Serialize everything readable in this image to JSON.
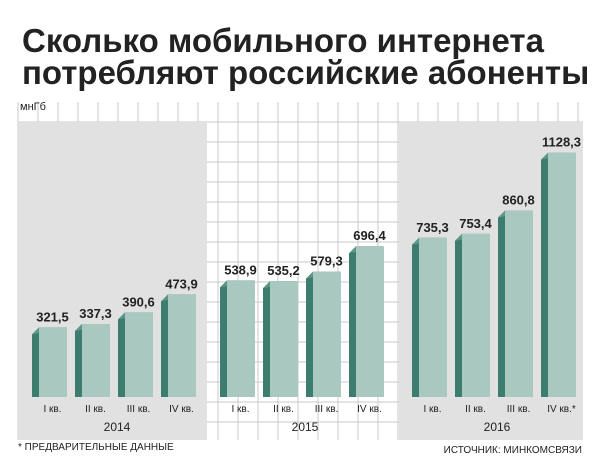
{
  "chart_data": {
    "type": "bar",
    "title": "Сколько мобильного интернета потребляют российские абоненты",
    "title_lines": [
      "Сколько мобильного интернета",
      "потребляют российские абоненты"
    ],
    "ylabel": "мнГб",
    "ylim": [
      0,
      1200
    ],
    "grid": true,
    "years": [
      {
        "label": "2014",
        "shaded": true,
        "categories": [
          "I кв.",
          "II кв.",
          "III кв.",
          "IV кв."
        ],
        "values": [
          321.5,
          337.3,
          390.6,
          473.9
        ],
        "value_labels": [
          "321,5",
          "337,3",
          "390,6",
          "473,9"
        ]
      },
      {
        "label": "2015",
        "shaded": false,
        "categories": [
          "I кв.",
          "II кв.",
          "III кв.",
          "IV кв."
        ],
        "values": [
          538.9,
          535.2,
          579.3,
          696.4
        ],
        "value_labels": [
          "538,9",
          "535,2",
          "579,3",
          "696,4"
        ]
      },
      {
        "label": "2016",
        "shaded": true,
        "categories": [
          "I кв.",
          "II кв.",
          "III кв.",
          "IV кв.*"
        ],
        "values": [
          735.3,
          753.4,
          860.8,
          1128.3
        ],
        "value_labels": [
          "735,3",
          "753,4",
          "860,8",
          "1128,3"
        ]
      }
    ],
    "footnote": "* ПРЕДВАРИТЕЛЬНЫЕ ДАННЫЕ",
    "source": "ИСТОЧНИК: МИНКОМСВЯЗИ",
    "colors": {
      "bar_front": "#a9c8bf",
      "bar_side": "#3d7d70",
      "bar_top": "#5c978a",
      "shade": "#e1e1e1",
      "grid": "#c9c9c9",
      "text": "#222222"
    }
  }
}
